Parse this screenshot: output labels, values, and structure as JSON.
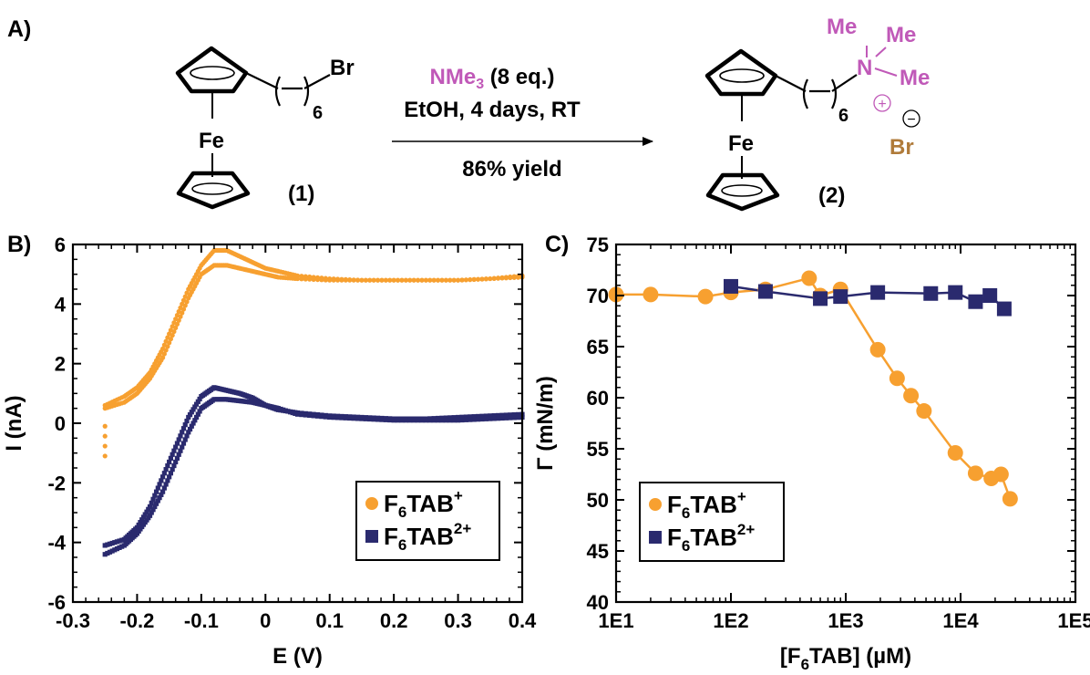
{
  "colors": {
    "orange": "#F7A030",
    "navy": "#2A2A6E",
    "magenta": "#C059B8",
    "brown": "#B07B3A"
  },
  "scheme": {
    "panel_label": "A)",
    "reagent_formula": "NMe",
    "reagent_sub": "3",
    "reagent_eq": " (8 eq.)",
    "conditions": "EtOH, 4 days, RT",
    "yield": "86% yield",
    "reactant": {
      "label": "(1)",
      "metal": "Fe",
      "halide": "Br",
      "chain_n": "6"
    },
    "product": {
      "label": "(2)",
      "metal": "Fe",
      "chain_n": "6",
      "nitrogen": "N",
      "methyl_1": "Me",
      "methyl_2": "Me",
      "methyl_3": "Me",
      "cation_sign": "+",
      "anion_sign": "−",
      "anion": "Br"
    }
  },
  "chart_data": [
    {
      "panel_label": "B)",
      "type": "scatter",
      "xlabel": "E (V)",
      "ylabel": "I (nA)",
      "xlim": [
        -0.3,
        0.4
      ],
      "ylim": [
        -6,
        6
      ],
      "xticks": [
        "-0.3",
        "-0.2",
        "-0.1",
        "0",
        "0.1",
        "0.2",
        "0.3",
        "0.4"
      ],
      "yticks": [
        "-6",
        "-4",
        "-2",
        "0",
        "2",
        "4",
        "6"
      ],
      "grid": false,
      "legend_position": "bottom-right",
      "legend": [
        {
          "main": "F",
          "sub": "6",
          "rest": "TAB",
          "sup": "+",
          "marker": "circle"
        },
        {
          "main": "F",
          "sub": "6",
          "rest": "TAB",
          "sup": "2+",
          "marker": "square"
        }
      ],
      "series": [
        {
          "marker": "circle",
          "color_key": "orange",
          "sweeps": [
            {
              "x": [
                -0.25,
                -0.22,
                -0.2,
                -0.18,
                -0.16,
                -0.14,
                -0.12,
                -0.1,
                -0.08,
                -0.06,
                -0.04,
                -0.02,
                0,
                0.02,
                0.05,
                0.1,
                0.15,
                0.2,
                0.25,
                0.3,
                0.35,
                0.4
              ],
              "y": [
                0.6,
                0.9,
                1.2,
                1.7,
                2.5,
                3.5,
                4.5,
                5.3,
                5.8,
                5.8,
                5.6,
                5.4,
                5.2,
                5.1,
                4.95,
                4.85,
                4.8,
                4.8,
                4.8,
                4.8,
                4.85,
                4.9
              ]
            },
            {
              "x": [
                0.4,
                0.35,
                0.3,
                0.25,
                0.2,
                0.15,
                0.1,
                0.05,
                0.02,
                0,
                -0.02,
                -0.04,
                -0.06,
                -0.08,
                -0.1,
                -0.12,
                -0.14,
                -0.16,
                -0.18,
                -0.2,
                -0.22,
                -0.25
              ],
              "y": [
                4.95,
                4.85,
                4.8,
                4.8,
                4.8,
                4.8,
                4.8,
                4.85,
                4.9,
                5.0,
                5.1,
                5.2,
                5.3,
                5.3,
                5.0,
                4.2,
                3.2,
                2.2,
                1.5,
                1.0,
                0.7,
                0.5
              ]
            },
            {
              "x": [
                -0.25,
                -0.25
              ],
              "y": [
                -0.1,
                -1.1
              ]
            }
          ]
        },
        {
          "marker": "square",
          "color_key": "navy",
          "sweeps": [
            {
              "x": [
                -0.25,
                -0.22,
                -0.2,
                -0.18,
                -0.16,
                -0.14,
                -0.12,
                -0.1,
                -0.08,
                -0.06,
                -0.04,
                -0.02,
                0,
                0.02,
                0.05,
                0.1,
                0.15,
                0.2,
                0.25,
                0.3,
                0.35,
                0.4
              ],
              "y": [
                -4.1,
                -3.9,
                -3.5,
                -2.8,
                -1.8,
                -0.8,
                0.2,
                0.9,
                1.2,
                1.1,
                1.0,
                0.85,
                0.6,
                0.45,
                0.35,
                0.25,
                0.2,
                0.15,
                0.15,
                0.2,
                0.25,
                0.3
              ]
            },
            {
              "x": [
                0.4,
                0.35,
                0.3,
                0.25,
                0.2,
                0.15,
                0.1,
                0.05,
                0.02,
                0,
                -0.02,
                -0.04,
                -0.06,
                -0.08,
                -0.1,
                -0.12,
                -0.14,
                -0.16,
                -0.18,
                -0.2,
                -0.22,
                -0.25
              ],
              "y": [
                0.2,
                0.15,
                0.1,
                0.1,
                0.1,
                0.15,
                0.2,
                0.3,
                0.5,
                0.6,
                0.7,
                0.75,
                0.8,
                0.8,
                0.5,
                -0.3,
                -1.3,
                -2.3,
                -3.1,
                -3.7,
                -4.1,
                -4.4
              ]
            }
          ]
        }
      ]
    },
    {
      "panel_label": "C)",
      "type": "line",
      "xlabel_main": "[F",
      "xlabel_sub": "6",
      "xlabel_rest": "TAB] (µM)",
      "ylabel": "Γ (mN/m)",
      "xscale": "log",
      "xlim": [
        10,
        100000
      ],
      "ylim": [
        40,
        75
      ],
      "xticks": [
        "1E1",
        "1E2",
        "1E3",
        "1E4",
        "1E5"
      ],
      "yticks": [
        "40",
        "45",
        "50",
        "55",
        "60",
        "65",
        "70",
        "75"
      ],
      "grid": false,
      "legend_position": "bottom-left",
      "legend": [
        {
          "main": "F",
          "sub": "6",
          "rest": "TAB",
          "sup": "+",
          "marker": "circle"
        },
        {
          "main": "F",
          "sub": "6",
          "rest": "TAB",
          "sup": "2+",
          "marker": "square"
        }
      ],
      "series": [
        {
          "marker": "circle",
          "color_key": "orange",
          "x": [
            10,
            20,
            60,
            100,
            200,
            480,
            600,
            900,
            1900,
            2800,
            3700,
            4800,
            9000,
            13500,
            18500,
            22500,
            27000
          ],
          "y": [
            70.1,
            70.1,
            69.9,
            70.3,
            70.6,
            71.7,
            70.0,
            70.6,
            64.7,
            61.9,
            60.2,
            58.7,
            54.6,
            52.6,
            52.1,
            52.5,
            50.1
          ]
        },
        {
          "marker": "square",
          "color_key": "navy",
          "x": [
            100,
            200,
            600,
            900,
            1900,
            5500,
            9000,
            13500,
            18000,
            24000
          ],
          "y": [
            70.9,
            70.4,
            69.7,
            69.9,
            70.3,
            70.2,
            70.3,
            69.4,
            70.0,
            68.7
          ]
        }
      ]
    }
  ]
}
